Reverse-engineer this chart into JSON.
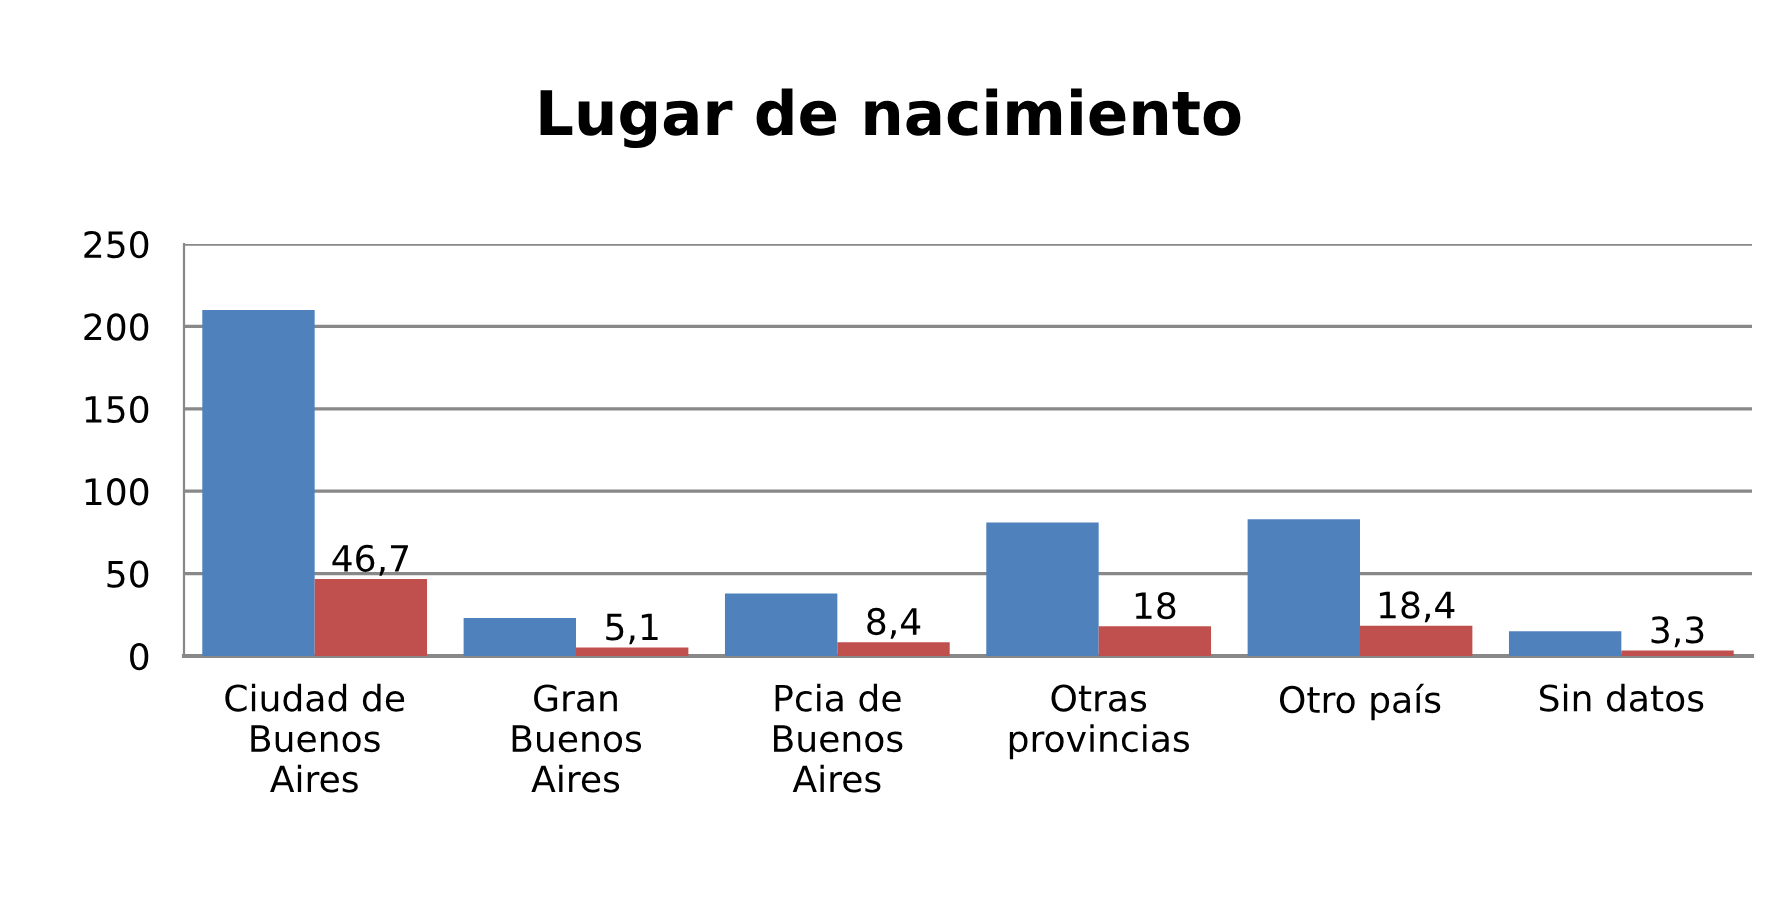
{
  "chart_data": {
    "type": "bar",
    "title": "Lugar de nacimiento",
    "categories": [
      "Ciudad de\nBuenos\nAires",
      "Gran\nBuenos\nAires",
      "Pcia de\nBuenos\nAires",
      "Otras\nprovincias",
      "Otro país",
      "Sin datos"
    ],
    "series": [
      {
        "color": "#4f81bd",
        "values": [
          210,
          23,
          38,
          81,
          83,
          15
        ]
      },
      {
        "color": "#c0504d",
        "values": [
          46.7,
          5.1,
          8.4,
          18,
          18.4,
          3.3
        ],
        "value_labels": [
          "46,7",
          "5,1",
          "8,4",
          "18",
          "18,4",
          "3,3"
        ]
      }
    ],
    "ylim": [
      0,
      250
    ],
    "yticks": [
      0,
      50,
      100,
      150,
      200,
      250
    ],
    "grid": "y",
    "legend": false
  }
}
